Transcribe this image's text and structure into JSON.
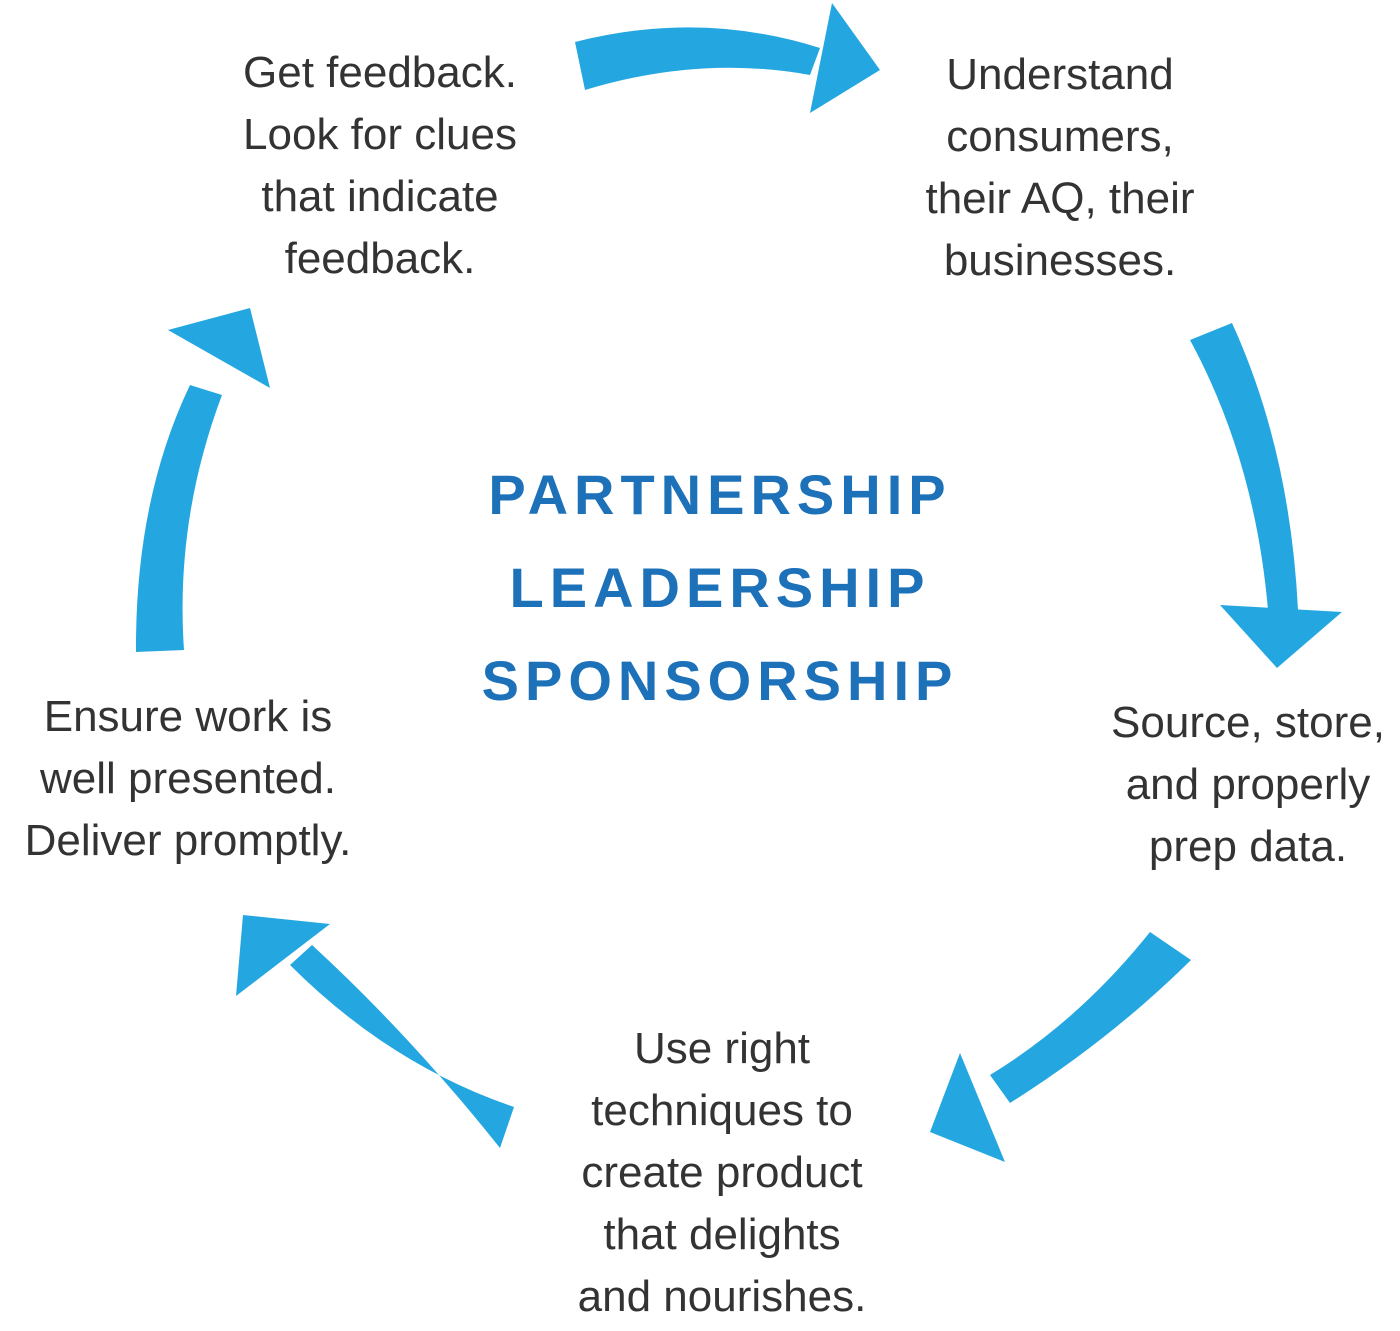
{
  "colors": {
    "arrow": "#24a7e0",
    "center_text": "#1d71b8",
    "step_text": "#333333"
  },
  "center": {
    "lines": [
      "PARTNERSHIP",
      "LEADERSHIP",
      "SPONSORSHIP"
    ]
  },
  "steps": [
    {
      "id": "understand",
      "lines": [
        "Understand",
        "consumers,",
        "their AQ, their",
        "businesses."
      ]
    },
    {
      "id": "source",
      "lines": [
        "Source, store,",
        "and properly",
        "prep data."
      ]
    },
    {
      "id": "techniques",
      "lines": [
        "Use right",
        "techniques to",
        "create product",
        "that delights",
        "and nourishes."
      ]
    },
    {
      "id": "deliver",
      "lines": [
        "Ensure work is",
        "well presented.",
        "Deliver promptly."
      ]
    },
    {
      "id": "feedback",
      "lines": [
        "Get feedback.",
        "Look for clues",
        "that indicate",
        "feedback."
      ]
    }
  ],
  "arrows": [
    {
      "from": "feedback",
      "to": "understand"
    },
    {
      "from": "understand",
      "to": "source"
    },
    {
      "from": "source",
      "to": "techniques"
    },
    {
      "from": "techniques",
      "to": "deliver"
    },
    {
      "from": "deliver",
      "to": "feedback"
    }
  ]
}
